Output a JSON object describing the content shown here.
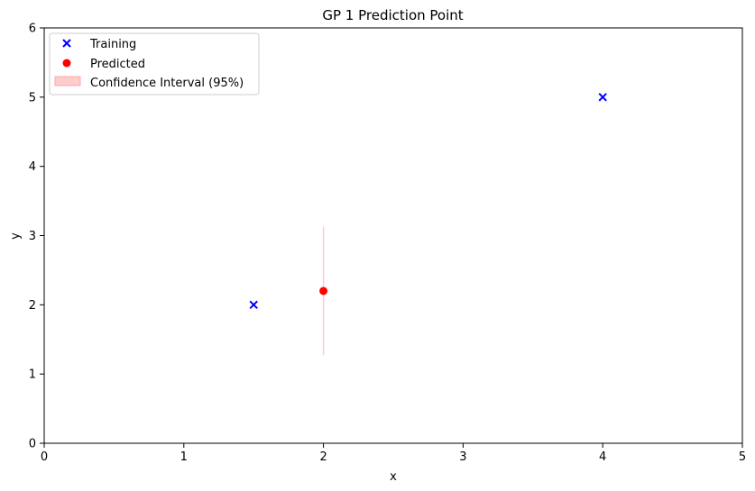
{
  "chart_data": {
    "type": "scatter",
    "title": "GP 1 Prediction Point",
    "xlabel": "x",
    "ylabel": "y",
    "xlim": [
      0,
      5
    ],
    "ylim": [
      0,
      6
    ],
    "x_ticks": [
      "0",
      "1",
      "2",
      "3",
      "4",
      "5"
    ],
    "y_ticks": [
      "0",
      "1",
      "2",
      "3",
      "4",
      "5",
      "6"
    ],
    "grid": false,
    "legend_position": "top-left",
    "series": [
      {
        "name": "Training",
        "marker": "x",
        "color": "#0000ff",
        "points": [
          {
            "x": 1.5,
            "y": 2.0
          },
          {
            "x": 4.0,
            "y": 5.0
          }
        ]
      },
      {
        "name": "Predicted",
        "marker": "circle",
        "color": "#ff0000",
        "points": [
          {
            "x": 2.0,
            "y": 2.2
          }
        ]
      }
    ],
    "confidence_interval": {
      "name": "Confidence Interval (95%)",
      "color": "#ffcccc",
      "x": 2.0,
      "lower": 1.27,
      "upper": 3.13
    }
  }
}
